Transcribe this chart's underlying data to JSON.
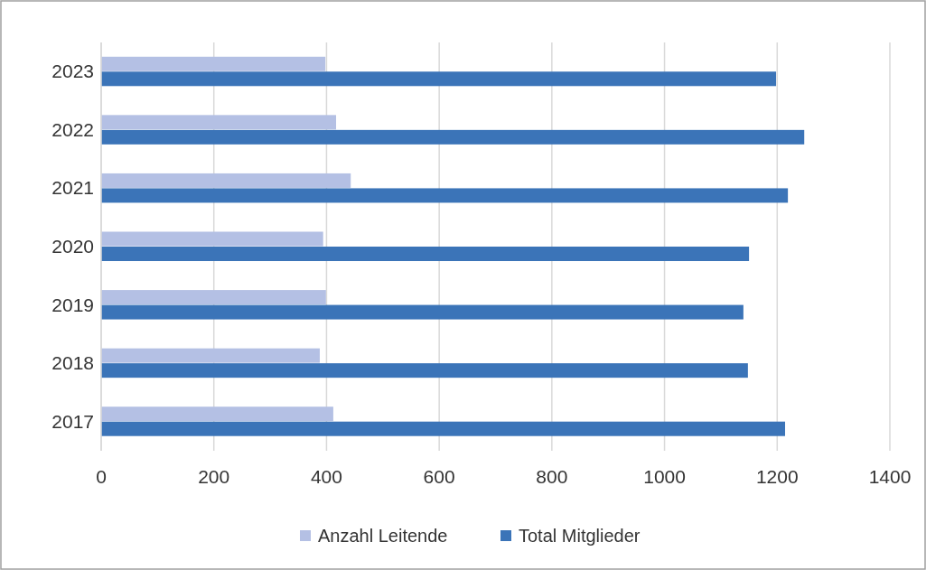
{
  "chart_data": {
    "type": "bar",
    "orientation": "horizontal",
    "categories": [
      "2023",
      "2022",
      "2021",
      "2020",
      "2019",
      "2018",
      "2017"
    ],
    "series": [
      {
        "name": "Anzahl Leitende",
        "color": "#b4c0e4",
        "values": [
          398,
          417,
          443,
          394,
          399,
          388,
          412
        ]
      },
      {
        "name": "Total Mitglieder",
        "color": "#3b74b8",
        "values": [
          1198,
          1248,
          1219,
          1150,
          1140,
          1148,
          1214
        ]
      }
    ],
    "xlim": [
      0,
      1400
    ],
    "xticks": [
      0,
      200,
      400,
      600,
      800,
      1000,
      1200,
      1400
    ],
    "grid": "x",
    "legend": "bottom"
  }
}
